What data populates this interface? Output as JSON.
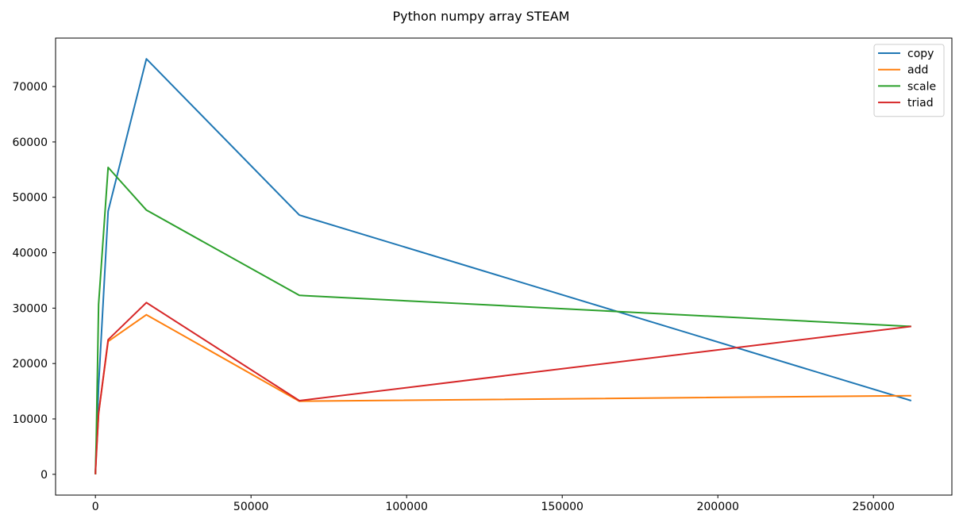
{
  "chart_data": {
    "type": "line",
    "title": "Python numpy array STEAM",
    "xlabel": "",
    "ylabel": "",
    "xlim": [
      -12800,
      275200
    ],
    "ylim": [
      -3750,
      78750
    ],
    "xticks": [
      0,
      50000,
      100000,
      150000,
      200000,
      250000
    ],
    "yticks": [
      0,
      10000,
      20000,
      30000,
      40000,
      50000,
      60000,
      70000
    ],
    "grid": false,
    "legend_position": "top-right",
    "x": [
      16,
      64,
      256,
      1024,
      4096,
      16384,
      65536,
      262144
    ],
    "series": [
      {
        "name": "copy",
        "color": "#1f77b4",
        "values": [
          0,
          1000,
          4000,
          16000,
          47500,
          75000,
          46800,
          13300
        ]
      },
      {
        "name": "add",
        "color": "#ff7f0e",
        "values": [
          0,
          800,
          3500,
          11000,
          24000,
          28800,
          13200,
          14200
        ]
      },
      {
        "name": "scale",
        "color": "#2ca02c",
        "values": [
          0,
          1500,
          6000,
          30700,
          55400,
          47700,
          32300,
          26700
        ]
      },
      {
        "name": "triad",
        "color": "#d62728",
        "values": [
          0,
          800,
          3000,
          11000,
          24300,
          31000,
          13300,
          26700
        ]
      }
    ]
  }
}
